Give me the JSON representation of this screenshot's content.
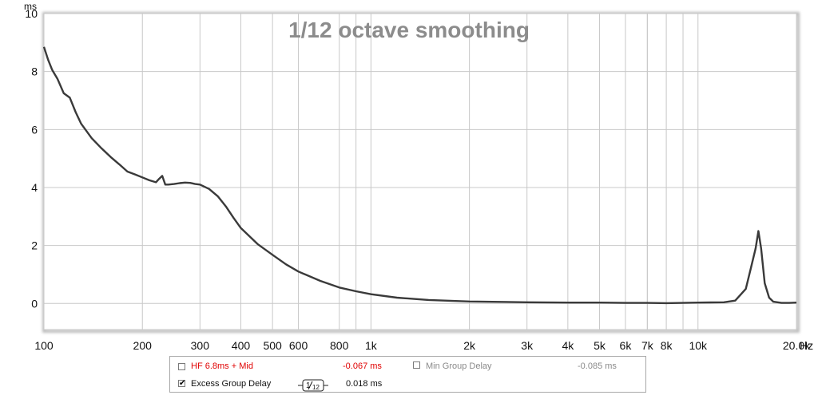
{
  "chart_data": {
    "type": "line",
    "title": "1/12 octave smoothing",
    "ylabel": "ms",
    "xlabel": "Hz",
    "x_scale": "log",
    "xlim": [
      100,
      20000
    ],
    "ylim": [
      -0.9,
      10
    ],
    "grid": true,
    "y_ticks": [
      {
        "value": 0,
        "label": "0"
      },
      {
        "value": 2,
        "label": "2"
      },
      {
        "value": 4,
        "label": "4"
      },
      {
        "value": 6,
        "label": "6"
      },
      {
        "value": 8,
        "label": "8"
      },
      {
        "value": 10,
        "label": "10"
      }
    ],
    "x_ticks": [
      {
        "value": 100,
        "label": "100"
      },
      {
        "value": 200,
        "label": "200"
      },
      {
        "value": 300,
        "label": "300"
      },
      {
        "value": 400,
        "label": "400"
      },
      {
        "value": 500,
        "label": "500"
      },
      {
        "value": 600,
        "label": "600"
      },
      {
        "value": 800,
        "label": "800"
      },
      {
        "value": 1000,
        "label": "1k"
      },
      {
        "value": 2000,
        "label": "2k"
      },
      {
        "value": 3000,
        "label": "3k"
      },
      {
        "value": 4000,
        "label": "4k"
      },
      {
        "value": 5000,
        "label": "5k"
      },
      {
        "value": 6000,
        "label": "6k"
      },
      {
        "value": 7000,
        "label": "7k"
      },
      {
        "value": 8000,
        "label": "8k"
      },
      {
        "value": 10000,
        "label": "10k"
      },
      {
        "value": 20000,
        "label": "20.0k"
      }
    ],
    "minor_gridlines": [
      900,
      7000,
      9000
    ],
    "series": [
      {
        "name": "Excess Group Delay",
        "color": "#3a3a3a",
        "x": [
          100,
          103,
          106,
          110,
          115,
          120,
          125,
          130,
          140,
          150,
          160,
          170,
          180,
          190,
          200,
          210,
          220,
          225,
          230,
          235,
          240,
          250,
          260,
          270,
          280,
          290,
          300,
          320,
          340,
          360,
          380,
          400,
          450,
          500,
          550,
          600,
          700,
          800,
          900,
          1000,
          1200,
          1500,
          2000,
          3000,
          4000,
          5000,
          6000,
          7000,
          8000,
          10000,
          12000,
          13000,
          14000,
          14500,
          15000,
          15300,
          15600,
          16000,
          16500,
          17000,
          18000,
          19000,
          20000
        ],
        "values": [
          8.85,
          8.4,
          8.05,
          7.75,
          7.25,
          7.1,
          6.6,
          6.2,
          5.7,
          5.35,
          5.05,
          4.8,
          4.55,
          4.45,
          4.35,
          4.25,
          4.18,
          4.3,
          4.4,
          4.1,
          4.1,
          4.12,
          4.15,
          4.17,
          4.16,
          4.12,
          4.1,
          3.95,
          3.7,
          3.35,
          2.95,
          2.6,
          2.05,
          1.68,
          1.35,
          1.1,
          0.78,
          0.55,
          0.42,
          0.32,
          0.2,
          0.12,
          0.07,
          0.04,
          0.03,
          0.03,
          0.02,
          0.02,
          0.01,
          0.03,
          0.04,
          0.1,
          0.5,
          1.2,
          1.9,
          2.5,
          1.9,
          0.7,
          0.2,
          0.06,
          0.02,
          0.02,
          0.03
        ]
      }
    ]
  },
  "legend": {
    "item1": {
      "label": "HF 6.8ms + Mid",
      "value": "-0.067 ms",
      "checked": false,
      "color": "#e00000"
    },
    "item2": {
      "label": "Min Group Delay",
      "value": "-0.085 ms",
      "checked": false,
      "color": "#8a8a8a"
    },
    "item3": {
      "label": "Excess Group Delay",
      "value": "0.018 ms",
      "checked": true,
      "color": "#111111"
    },
    "smoothing_icon": "smoothing-1-12-icon",
    "smoothing_numerator": "1",
    "smoothing_denominator": "12"
  }
}
